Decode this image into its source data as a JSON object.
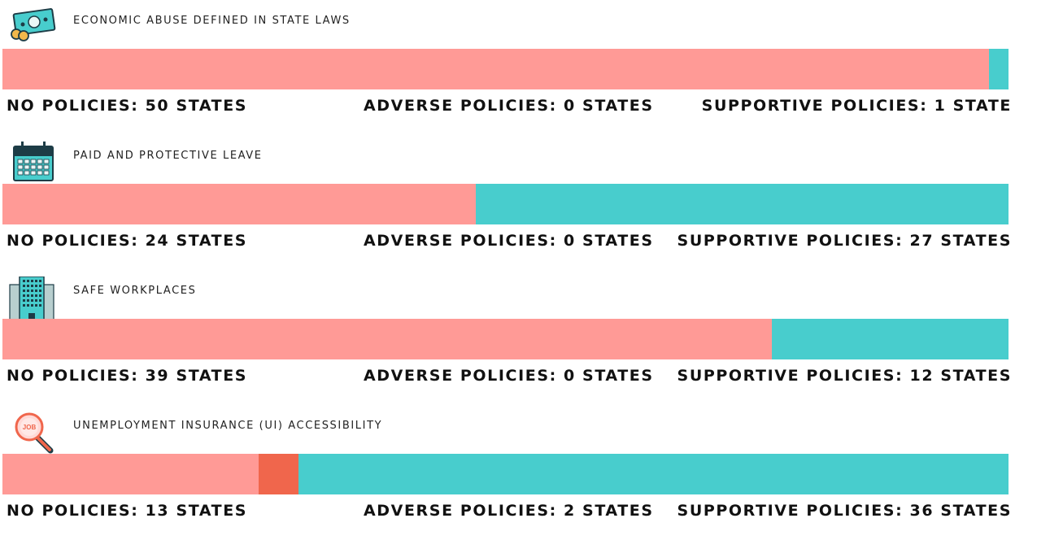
{
  "colors": {
    "no": "#ff9a96",
    "adverse": "#f0664c",
    "supportive": "#48cdcd"
  },
  "chart_data": [
    {
      "type": "bar",
      "stacked": true,
      "orientation": "horizontal",
      "title": "ECONOMIC ABUSE DEFINED IN STATE LAWS",
      "icon": "money-icon",
      "series": [
        {
          "name": "NO POLICIES",
          "value": 50,
          "label": "NO POLICIES: 50 STATES"
        },
        {
          "name": "ADVERSE POLICIES",
          "value": 0,
          "label": "ADVERSE POLICIES: 0 STATES"
        },
        {
          "name": "SUPPORTIVE POLICIES",
          "value": 1,
          "label": "SUPPORTIVE POLICIES: 1 STATE"
        }
      ]
    },
    {
      "type": "bar",
      "stacked": true,
      "orientation": "horizontal",
      "title": "PAID AND PROTECTIVE LEAVE",
      "icon": "calendar-icon",
      "series": [
        {
          "name": "NO POLICIES",
          "value": 24,
          "label": "NO POLICIES: 24 STATES"
        },
        {
          "name": "ADVERSE POLICIES",
          "value": 0,
          "label": "ADVERSE POLICIES: 0 STATES"
        },
        {
          "name": "SUPPORTIVE POLICIES",
          "value": 27,
          "label": "SUPPORTIVE POLICIES: 27 STATES"
        }
      ]
    },
    {
      "type": "bar",
      "stacked": true,
      "orientation": "horizontal",
      "title": "SAFE WORKPLACES",
      "icon": "building-icon",
      "series": [
        {
          "name": "NO POLICIES",
          "value": 39,
          "label": "NO POLICIES: 39 STATES"
        },
        {
          "name": "ADVERSE POLICIES",
          "value": 0,
          "label": "ADVERSE POLICIES: 0 STATES"
        },
        {
          "name": "SUPPORTIVE POLICIES",
          "value": 12,
          "label": "SUPPORTIVE POLICIES: 12 STATES"
        }
      ]
    },
    {
      "type": "bar",
      "stacked": true,
      "orientation": "horizontal",
      "title": "UNEMPLOYMENT INSURANCE (UI) ACCESSIBILITY",
      "icon": "job-search-icon",
      "icon_text": "JOB",
      "series": [
        {
          "name": "NO POLICIES",
          "value": 13,
          "label": "NO POLICIES: 13 STATES"
        },
        {
          "name": "ADVERSE POLICIES",
          "value": 2,
          "label": "ADVERSE POLICIES: 2 STATES"
        },
        {
          "name": "SUPPORTIVE POLICIES",
          "value": 36,
          "label": "SUPPORTIVE POLICIES: 36 STATES"
        }
      ]
    }
  ]
}
